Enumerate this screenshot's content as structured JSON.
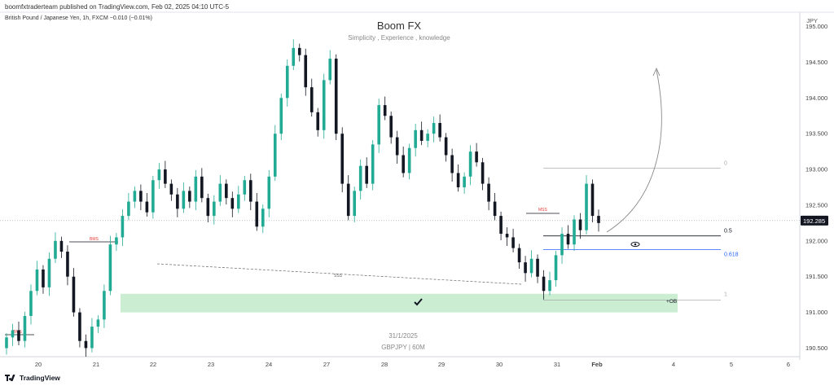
{
  "header": {
    "published": "boomfxtraderteam published on TradingView.com, Feb 02, 2025 04:10 UTC-5",
    "symbol_line": "British Pound / Japanese Yen, 1h, FXCM  −0.010 (−0.01%)",
    "currency": "JPY"
  },
  "watermark": {
    "title": "Boom FX",
    "subtitle": "Simplicity , Experience , knowledge",
    "date": "31/1/2025",
    "pair": "GBPJPY | 60M"
  },
  "footer": {
    "logo": "TradingView"
  },
  "chart_data": {
    "type": "candlestick",
    "y_ticks": [
      "195.000",
      "194.500",
      "194.000",
      "193.500",
      "193.000",
      "192.500",
      "192.000",
      "191.500",
      "191.000",
      "190.500"
    ],
    "ylim": [
      190.38,
      195.2
    ],
    "x_ticks": [
      "20",
      "21",
      "22",
      "23",
      "24",
      "27",
      "28",
      "29",
      "30",
      "31",
      "Feb",
      "4",
      "5",
      "6"
    ],
    "current_price": "192.285",
    "annotations": {
      "bms_left": "BMS",
      "bms_mid": "BMS",
      "mss": "MSS",
      "sss": "SSS",
      "fib_0": "0",
      "fib_05": "0.5",
      "fib_0618": "0.618",
      "fib_1": "1",
      "ob": "+OB"
    },
    "fib_levels": {
      "0": 193.02,
      "0.5": 192.07,
      "0.618": 191.88,
      "1": 191.17
    },
    "order_block": {
      "top": 191.26,
      "bottom": 191.0
    },
    "colors": {
      "up": "#22ab94",
      "down": "#131722",
      "zone": "#c8ecd0",
      "fib_blue": "#2962ff",
      "annotation_red": "#e53935"
    },
    "path_close": [
      190.65,
      190.75,
      190.6,
      190.95,
      191.3,
      191.6,
      191.35,
      191.75,
      192.0,
      191.85,
      191.5,
      191.0,
      190.6,
      190.5,
      190.8,
      190.9,
      191.3,
      191.95,
      192.05,
      192.35,
      192.55,
      192.7,
      192.55,
      192.4,
      192.85,
      193.0,
      192.8,
      192.65,
      192.45,
      192.7,
      192.55,
      192.9,
      192.6,
      192.35,
      192.55,
      192.8,
      192.6,
      192.45,
      192.65,
      192.85,
      192.55,
      192.2,
      192.45,
      192.9,
      193.5,
      194.0,
      194.45,
      194.7,
      194.6,
      194.15,
      193.8,
      193.55,
      194.25,
      194.55,
      193.5,
      192.8,
      192.35,
      192.7,
      193.05,
      192.8,
      193.35,
      193.9,
      193.75,
      193.45,
      193.2,
      192.95,
      193.3,
      193.55,
      193.4,
      193.5,
      193.65,
      193.45,
      193.2,
      192.95,
      192.75,
      192.9,
      193.25,
      193.1,
      192.8,
      192.55,
      192.35,
      192.1,
      192.05,
      191.9,
      191.7,
      191.55,
      191.75,
      191.5,
      191.3,
      191.45,
      191.8,
      192.1,
      191.95,
      192.3,
      192.15,
      192.8,
      192.35,
      192.25
    ]
  }
}
